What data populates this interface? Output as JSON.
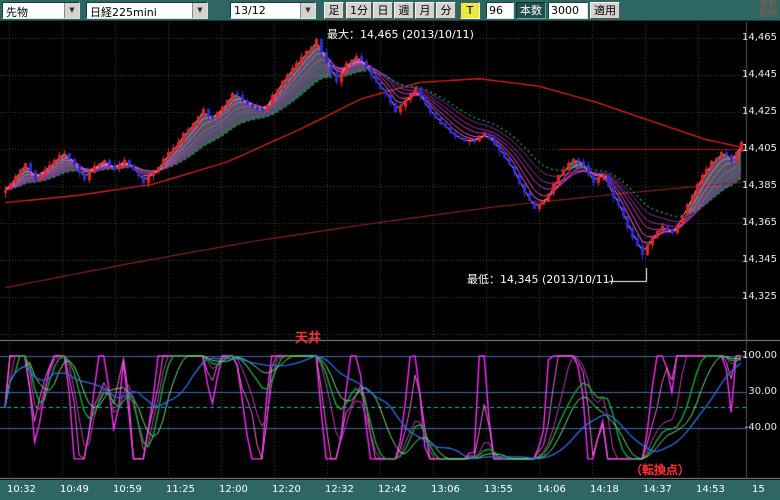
{
  "icons": {
    "chevron_down": "▼"
  },
  "toolbar": {
    "instrument_type": "先物",
    "instrument": "日経225mini",
    "contract_month": "13/12",
    "candle_label": "足",
    "period_buttons": [
      "1分",
      "日",
      "週",
      "月",
      "分",
      "T"
    ],
    "tick_count_value": "96",
    "bars_label": "本数",
    "bars_value": "3000",
    "apply_label": "適用",
    "multi_symbol_line1": "複数",
    "multi_symbol_line2": "銘柄"
  },
  "axes": {
    "y_main": [
      "14,465",
      "14,445",
      "14,425",
      "14,405",
      "14,385",
      "14,365",
      "14,345",
      "14,325"
    ],
    "y_sub": [
      "100.00",
      "30.00",
      "-40.00"
    ],
    "x_time": [
      "10:32",
      "10:49",
      "10:59",
      "11:25",
      "12:00",
      "12:20",
      "12:32",
      "12:42",
      "13:06",
      "13:55",
      "14:06",
      "14:18",
      "14:37",
      "14:53",
      "15"
    ]
  },
  "annotations": {
    "max_label": "最大：14,465 (2013/10/11)",
    "min_label": "最低：14,345 (2013/10/11)",
    "ceiling_label": "天井",
    "turning_point_label": "（転換点）"
  },
  "chart_data": {
    "type": "candlestick_with_oscillator",
    "y_axis_range": [
      14303,
      14473
    ],
    "max_price": 14465,
    "min_price": 14345,
    "resistance_level": 14405,
    "sub_levels": [
      100,
      30,
      0,
      -40
    ],
    "price_anchors": [
      [
        0,
        14383
      ],
      [
        2,
        14390
      ],
      [
        4,
        14397
      ],
      [
        6,
        14389
      ],
      [
        8,
        14394
      ],
      [
        10,
        14399
      ],
      [
        12,
        14403
      ],
      [
        14,
        14396
      ],
      [
        16,
        14389
      ],
      [
        18,
        14396
      ],
      [
        20,
        14399
      ],
      [
        22,
        14394
      ],
      [
        24,
        14399
      ],
      [
        26,
        14393
      ],
      [
        28,
        14387
      ],
      [
        30,
        14393
      ],
      [
        32,
        14399
      ],
      [
        34,
        14406
      ],
      [
        36,
        14413
      ],
      [
        38,
        14419
      ],
      [
        40,
        14426
      ],
      [
        42,
        14421
      ],
      [
        44,
        14428
      ],
      [
        46,
        14436
      ],
      [
        48,
        14431
      ],
      [
        50,
        14428
      ],
      [
        52,
        14425
      ],
      [
        54,
        14434
      ],
      [
        56,
        14442
      ],
      [
        58,
        14448
      ],
      [
        60,
        14455
      ],
      [
        62,
        14461
      ],
      [
        63,
        14464
      ],
      [
        65,
        14451
      ],
      [
        67,
        14441
      ],
      [
        69,
        14451
      ],
      [
        71,
        14456
      ],
      [
        73,
        14449
      ],
      [
        75,
        14441
      ],
      [
        77,
        14434
      ],
      [
        79,
        14425
      ],
      [
        81,
        14431
      ],
      [
        83,
        14438
      ],
      [
        85,
        14429
      ],
      [
        87,
        14421
      ],
      [
        89,
        14417
      ],
      [
        91,
        14412
      ],
      [
        93,
        14409
      ],
      [
        95,
        14410
      ],
      [
        97,
        14413
      ],
      [
        99,
        14407
      ],
      [
        101,
        14400
      ],
      [
        103,
        14392
      ],
      [
        105,
        14381
      ],
      [
        107,
        14372
      ],
      [
        109,
        14377
      ],
      [
        111,
        14386
      ],
      [
        113,
        14394
      ],
      [
        115,
        14400
      ],
      [
        117,
        14396
      ],
      [
        119,
        14387
      ],
      [
        121,
        14391
      ],
      [
        123,
        14379
      ],
      [
        125,
        14369
      ],
      [
        127,
        14357
      ],
      [
        129,
        14348
      ],
      [
        131,
        14357
      ],
      [
        133,
        14364
      ],
      [
        135,
        14359
      ],
      [
        137,
        14369
      ],
      [
        139,
        14381
      ],
      [
        141,
        14391
      ],
      [
        143,
        14398
      ],
      [
        145,
        14404
      ],
      [
        147,
        14398
      ],
      [
        149,
        14408
      ]
    ],
    "ma_red_anchors": [
      [
        0,
        14376
      ],
      [
        15,
        14380
      ],
      [
        30,
        14386
      ],
      [
        45,
        14398
      ],
      [
        60,
        14416
      ],
      [
        72,
        14432
      ],
      [
        84,
        14441
      ],
      [
        96,
        14443
      ],
      [
        108,
        14439
      ],
      [
        120,
        14430
      ],
      [
        132,
        14419
      ],
      [
        142,
        14410
      ],
      [
        149,
        14406
      ]
    ],
    "ma_maroon_anchors": [
      [
        0,
        14330
      ],
      [
        25,
        14343
      ],
      [
        50,
        14355
      ],
      [
        75,
        14365
      ],
      [
        100,
        14374
      ],
      [
        125,
        14381
      ],
      [
        149,
        14387
      ]
    ],
    "colors": {
      "candle_up": "#ee2222",
      "candle_down": "#2b2bdf",
      "grid": "#3f3f3f",
      "ribbon": [
        "#ff9ad9",
        "#ff6fd8",
        "#ef4fd0",
        "#d13fc0",
        "#ad30b4",
        "#8c2aa0"
      ],
      "ma_green": "#00b050",
      "ma_red": "#cc2222",
      "ma_maroon": "#8a2020",
      "resistance": "#b31717",
      "cloud": "rgba(190,240,248,0.38)",
      "sub_line": "#3a6ea8",
      "sub_zero": "#00b7b7",
      "osc": [
        "#ff2bff",
        "#f06ad8",
        "#c23cb4",
        "#19b33c",
        "#7fd67f",
        "#2d6fe0"
      ],
      "annotation_red": "#ff3030"
    }
  }
}
